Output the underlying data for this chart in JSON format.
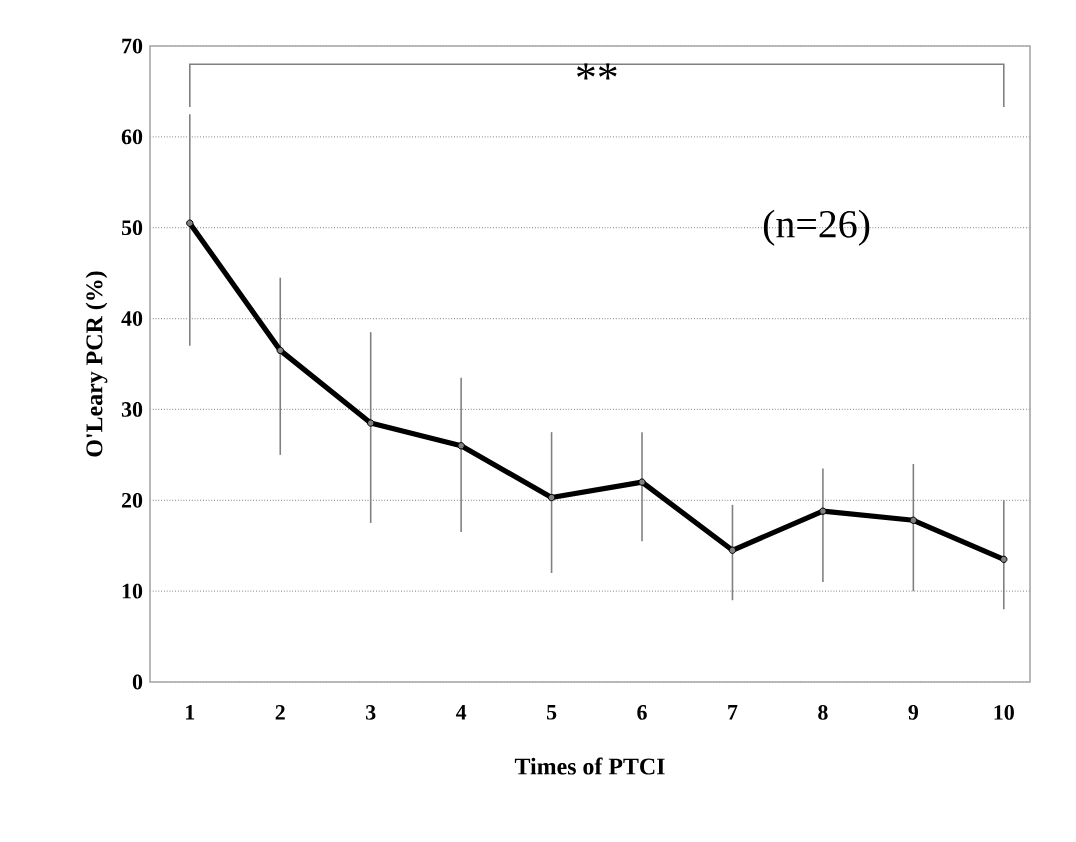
{
  "chart_data": {
    "type": "line",
    "xlabel": "Times of PTCI",
    "ylabel": "O'Leary PCR (%)",
    "categories": [
      "1",
      "2",
      "3",
      "4",
      "5",
      "6",
      "7",
      "8",
      "9",
      "10"
    ],
    "series": [
      {
        "color": "#000000",
        "values": [
          50.5,
          36.5,
          28.5,
          26,
          20.3,
          22,
          14.5,
          18.8,
          17.8,
          13.5
        ],
        "errors": [
          [
            37,
            62.5
          ],
          [
            25,
            44.5
          ],
          [
            17.5,
            38.5
          ],
          [
            16.5,
            33.5
          ],
          [
            12,
            27.5
          ],
          [
            15.5,
            27.5
          ],
          [
            9,
            19.5
          ],
          [
            11,
            23.5
          ],
          [
            10,
            24
          ],
          [
            8,
            20
          ]
        ]
      }
    ],
    "ylim": [
      0,
      70
    ],
    "yticks": [
      0,
      10,
      20,
      30,
      40,
      50,
      60,
      70
    ],
    "grid": "y",
    "marker": "circle",
    "line_style": "solid",
    "annotations": [
      "**",
      "(n=26)"
    ]
  }
}
